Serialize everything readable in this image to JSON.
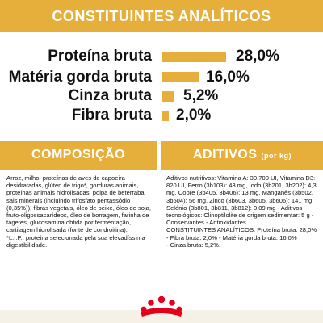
{
  "header": {
    "title": "CONSTITUINTES ANALÍTICOS"
  },
  "analytics": [
    {
      "label": "Proteína bruta",
      "value": "28,0%",
      "percent": 28.0
    },
    {
      "label": "Matéria gorda bruta",
      "value": "16,0%",
      "percent": 16.0
    },
    {
      "label": "Cinza bruta",
      "value": "5,2%",
      "percent": 5.2
    },
    {
      "label": "Fibra bruta",
      "value": "2,0%",
      "percent": 2.0
    }
  ],
  "composition": {
    "title": "COMPOSIÇÃO",
    "text": "Arroz, milho, proteínas de aves de capoeira desidratadas, glúten de trigo*, gorduras animais, proteínas animais hidrolisadas, polpa de beterraba, sais minerais (incluindo trifosfato pentassódio (0,35%)), fibras vegetais, óleo de peixe, óleo de soja, fruto-oligossacarídeos, óleo de borragem, farinha de tagetes, glucosamina obtida por fermentação, cartilagem hidrolisada (fonte de condroitina).\n*L.I.P.: proteína selecionada pela sua elevadíssima digestibilidade."
  },
  "additives": {
    "title": "ADITIVOS",
    "unit": "(por kg)",
    "lines": [
      "Aditivos nutritivos: Vitamina A: 30.700 UI, Vitamina D3: 820 UI, Ferro (3b103): 43 mg, Iodo (3b201, 3b202): 4,3 mg, Cobre (3b405, 3b406): 13 mg, Manganês (3b502, 3b504): 56 mg, Zinco (3b603, 3b605, 3b606): 141 mg, Selénio (3b801, 3b811, 3b812): 0,09 mg - Aditivos tecnológicos: Clinoptilolite de origem sedimentar: 5 g - Conservantes - Antioxidantes.",
      "CONSTITUINTES ANALÍTICOS: Proteína bruta: 28,0%",
      "- Fibra bruta: 2,0% - Matéria gorda bruta: 16,0%",
      "- Cinza bruta: 5,2%."
    ]
  },
  "colors": {
    "accent": "#e6ae3a",
    "text": "#111111",
    "brand_red": "#e2001a"
  },
  "logo": {
    "icon": "royal-canin-crown-logo"
  }
}
